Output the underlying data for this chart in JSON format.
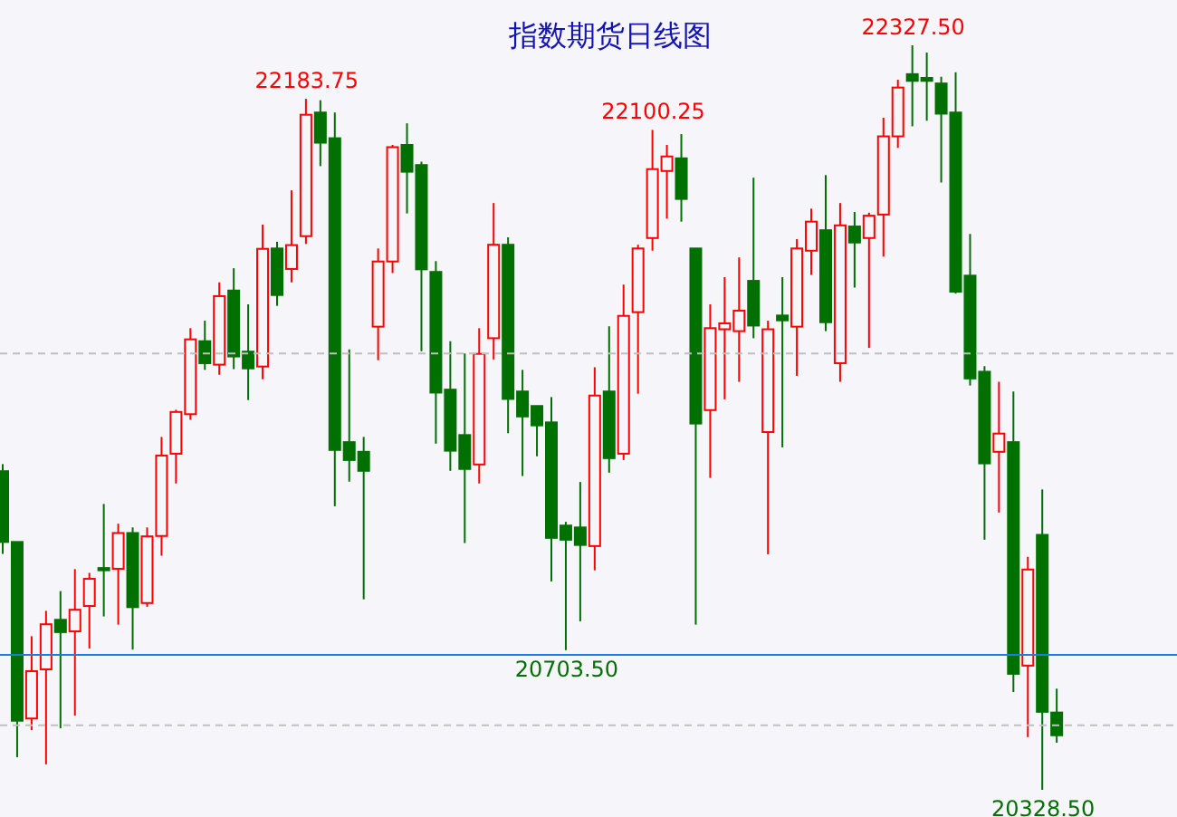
{
  "chart_data": {
    "type": "candlestick",
    "title": "指数期货日线图",
    "categories": [
      null,
      null,
      null,
      null,
      null,
      null,
      null,
      null,
      null,
      null,
      null,
      null,
      null,
      null,
      null,
      null,
      null,
      null,
      null,
      null,
      null,
      null,
      null,
      null,
      null,
      null,
      null,
      null,
      null,
      null,
      null,
      null,
      null,
      null,
      null,
      null,
      null,
      null,
      null,
      null,
      null,
      null,
      null,
      null,
      null,
      null,
      null,
      null,
      null,
      null,
      null,
      null,
      null,
      null,
      null,
      null,
      null,
      null,
      null,
      null,
      null,
      null,
      null,
      null,
      null,
      null,
      null,
      null,
      null,
      null,
      null,
      null,
      null,
      null
    ],
    "ohlc": [
      [
        21184,
        21203,
        20962,
        20994
      ],
      [
        20994,
        20994,
        20416,
        20514
      ],
      [
        20520,
        20741,
        20489,
        20647
      ],
      [
        20652,
        20809,
        20397,
        20773
      ],
      [
        20785,
        20862,
        20494,
        20752
      ],
      [
        20754,
        20921,
        20528,
        20812
      ],
      [
        20822,
        20911,
        20708,
        20895
      ],
      [
        20924,
        21096,
        20794,
        20918
      ],
      [
        20922,
        21043,
        20772,
        21018
      ],
      [
        21018,
        21033,
        20705,
        20819
      ],
      [
        20830,
        21033,
        20820,
        21009
      ],
      [
        21010,
        21276,
        20957,
        21226
      ],
      [
        21231,
        21349,
        21151,
        21343
      ],
      [
        21337,
        21568,
        21322,
        21538
      ],
      [
        21533,
        21588,
        21456,
        21474
      ],
      [
        21470,
        21691,
        21443,
        21654
      ],
      [
        21669,
        21729,
        21458,
        21492
      ],
      [
        21505,
        21632,
        21375,
        21460
      ],
      [
        21465,
        21846,
        21431,
        21781
      ],
      [
        21782,
        21800,
        21628,
        21657
      ],
      [
        21727,
        21938,
        21691,
        21791
      ],
      [
        21815,
        22183.75,
        21794,
        22141
      ],
      [
        22147,
        22180,
        22003,
        22066
      ],
      [
        22078,
        22147,
        21090,
        21241
      ],
      [
        21262,
        21511,
        21156,
        21214
      ],
      [
        21236,
        21276,
        20840,
        21185
      ],
      [
        21572,
        21782,
        21482,
        21747
      ],
      [
        21747,
        22060,
        21716,
        22054
      ],
      [
        22060,
        22118,
        21876,
        21988
      ],
      [
        22006,
        22015,
        21506,
        21726
      ],
      [
        21719,
        21748,
        21258,
        21395
      ],
      [
        21403,
        21533,
        21185,
        21239
      ],
      [
        21281,
        21500,
        20991,
        21190
      ],
      [
        21202,
        21568,
        21151,
        21499
      ],
      [
        21541,
        21904,
        21484,
        21792
      ],
      [
        21792,
        21812,
        21286,
        21378
      ],
      [
        21398,
        21456,
        21171,
        21331
      ],
      [
        21359,
        21359,
        21224,
        21307
      ],
      [
        21315,
        21383,
        20888,
        21005
      ],
      [
        21038,
        21048,
        20703.5,
        21000
      ],
      [
        21033,
        21155,
        20781,
        20986
      ],
      [
        20983,
        21463,
        20918,
        21387
      ],
      [
        21398,
        21573,
        21180,
        21219
      ],
      [
        21231,
        21685,
        21214,
        21601
      ],
      [
        21611,
        21792,
        21392,
        21782
      ],
      [
        21810,
        22100.25,
        21776,
        21995
      ],
      [
        21990,
        22060,
        21862,
        22029
      ],
      [
        22024,
        22089,
        21854,
        21915
      ],
      [
        21782,
        21782,
        20772,
        21312
      ],
      [
        21348,
        21632,
        21166,
        21568
      ],
      [
        21565,
        21705,
        21377,
        21581
      ],
      [
        21560,
        21758,
        21424,
        21615
      ],
      [
        21695,
        21972,
        21541,
        21575
      ],
      [
        21289,
        21588,
        20961,
        21565
      ],
      [
        21602,
        21705,
        21248,
        21589
      ],
      [
        21572,
        21807,
        21440,
        21782
      ],
      [
        21776,
        21889,
        21711,
        21854
      ],
      [
        21831,
        21979,
        21560,
        21584
      ],
      [
        21474,
        21904,
        21424,
        21844
      ],
      [
        21841,
        21880,
        21677,
        21798
      ],
      [
        21810,
        21878,
        21515,
        21870
      ],
      [
        21873,
        22133,
        21760,
        22083
      ],
      [
        22083,
        22235,
        22052,
        22214
      ],
      [
        22250,
        22327.5,
        22110,
        22232
      ],
      [
        22240,
        22308,
        22125,
        22232
      ],
      [
        22225,
        22243,
        21959,
        22144
      ],
      [
        22147,
        22255,
        21661,
        21666
      ],
      [
        21709,
        21821,
        21414,
        21433
      ],
      [
        21451,
        21466,
        21000,
        21205
      ],
      [
        21236,
        21424,
        21073,
        21285
      ],
      [
        21262,
        21398,
        20591,
        20640
      ],
      [
        20662,
        20954,
        20470,
        20920
      ],
      [
        21013,
        21135,
        20328.5,
        20538
      ],
      [
        20536,
        20600,
        20455,
        20475
      ]
    ],
    "ref_lines": [
      {
        "axis": "y",
        "value": 21500,
        "color": "#c0c0c0",
        "line_style": "dashed"
      },
      {
        "axis": "y",
        "value": 20691,
        "color": "#1e7be0",
        "line_style": "solid"
      },
      {
        "axis": "y",
        "value": 20502,
        "color": "#c0c0c0",
        "line_style": "dashed"
      }
    ],
    "annotations": [
      {
        "text": "22183.75",
        "y": 22183.75
      },
      {
        "text": "22100.25",
        "y": 22100.25
      },
      {
        "text": "22327.50",
        "y": 22327.5
      },
      {
        "text": "20703.50",
        "y": 20703.5
      },
      {
        "text": "20328.50",
        "y": 20328.5
      }
    ]
  }
}
